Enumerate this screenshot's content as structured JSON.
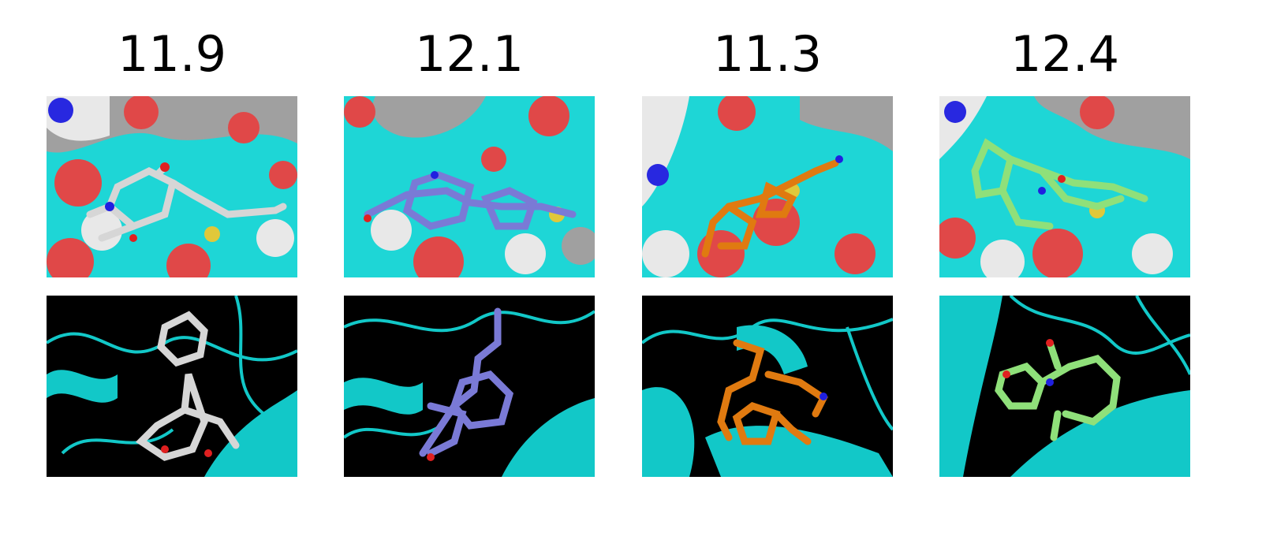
{
  "columns": [
    {
      "score": "11.9",
      "ligand_color": "#d6d6d6"
    },
    {
      "score": "12.1",
      "ligand_color": "#7a7ad6"
    },
    {
      "score": "11.3",
      "ligand_color": "#e07a10"
    },
    {
      "score": "12.4",
      "ligand_color": "#8fe07a"
    }
  ],
  "colors": {
    "surface_cyan": "#1ed6d6",
    "surface_red": "#e04848",
    "surface_white": "#e8e8e8",
    "surface_gray": "#a0a0a0",
    "surface_blue": "#2828e0",
    "surface_yellow": "#e0c83a",
    "ribbon_cyan": "#12c8c8",
    "background_black": "#000000",
    "atom_red": "#e02020",
    "atom_blue": "#2020e0"
  }
}
